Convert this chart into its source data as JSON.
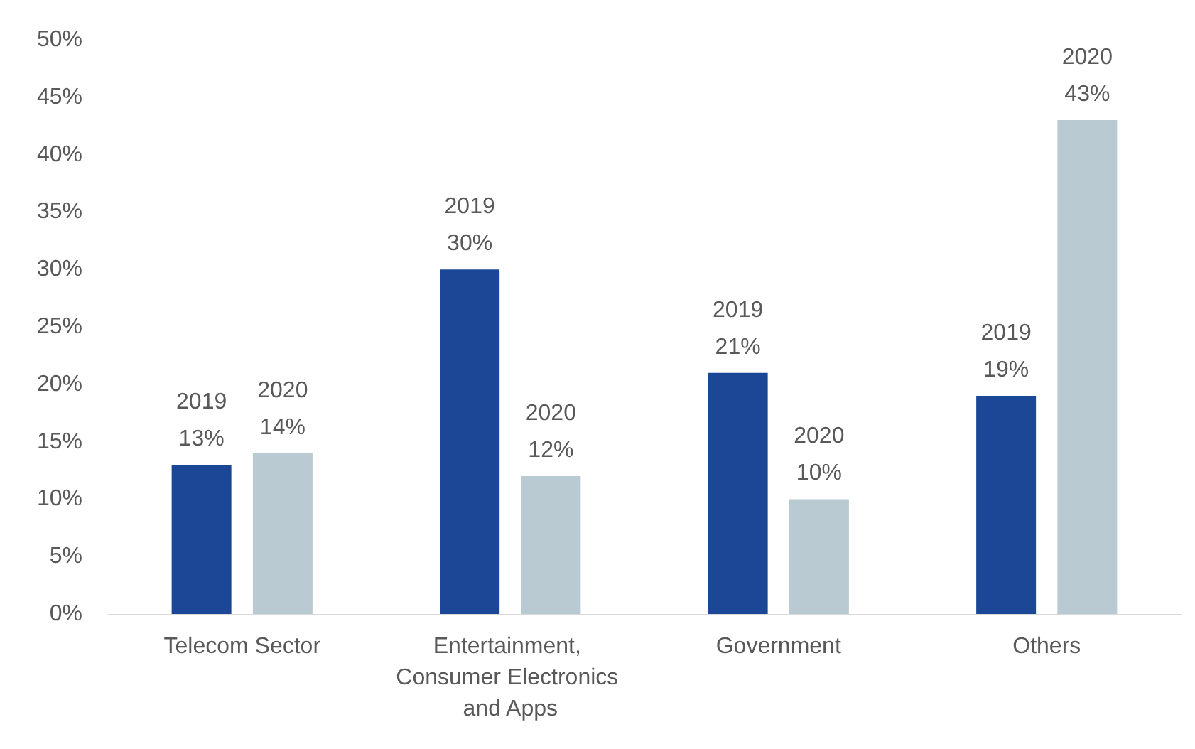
{
  "chart_data": {
    "type": "bar",
    "categories": [
      "Telecom Sector",
      "Entertainment, Consumer Electronics and Apps",
      "Government",
      "Others"
    ],
    "series": [
      {
        "name": "2019",
        "color": "#1c4696",
        "values": [
          13,
          30,
          21,
          19
        ],
        "value_labels": [
          "13%",
          "30%",
          "21%",
          "19%"
        ]
      },
      {
        "name": "2020",
        "color": "#b9cad3",
        "values": [
          14,
          12,
          10,
          43
        ],
        "value_labels": [
          "14%",
          "12%",
          "10%",
          "43%"
        ]
      }
    ],
    "ylim": [
      0,
      50
    ],
    "yticks": [
      {
        "value": 0,
        "label": "0%"
      },
      {
        "value": 5,
        "label": "5%"
      },
      {
        "value": 10,
        "label": "10%"
      },
      {
        "value": 15,
        "label": "15%"
      },
      {
        "value": 20,
        "label": "20%"
      },
      {
        "value": 25,
        "label": "25%"
      },
      {
        "value": 30,
        "label": "30%"
      },
      {
        "value": 35,
        "label": "35%"
      },
      {
        "value": 40,
        "label": "40%"
      },
      {
        "value": 45,
        "label": "45%"
      },
      {
        "value": 50,
        "label": "50%"
      }
    ],
    "grid": false,
    "legend": false
  }
}
